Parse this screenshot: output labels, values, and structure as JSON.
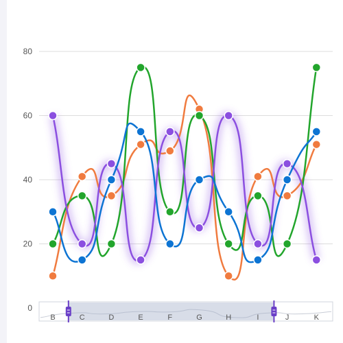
{
  "chart_data": {
    "type": "line",
    "smooth": true,
    "categories": [
      "B",
      "C",
      "D",
      "E",
      "F",
      "G",
      "H",
      "I",
      "J",
      "K"
    ],
    "ylim": [
      0,
      80
    ],
    "yticks": [
      0,
      20,
      40,
      60,
      80
    ],
    "grid": true,
    "series": [
      {
        "color": "#f07b3f",
        "values": [
          10,
          41,
          35,
          51,
          49,
          62,
          10,
          41,
          35,
          51
        ]
      },
      {
        "color": "#22a52c",
        "values": [
          20,
          35,
          20,
          75,
          30,
          60,
          20,
          35,
          20,
          75
        ]
      },
      {
        "color": "#8b4fe0",
        "values": [
          60,
          20,
          45,
          15,
          55,
          25,
          60,
          20,
          45,
          15
        ],
        "glow": true
      },
      {
        "color": "#0d74d3",
        "values": [
          30,
          15,
          40,
          55,
          20,
          40,
          30,
          15,
          40,
          55
        ]
      }
    ],
    "zoom": {
      "categories": [
        "B",
        "C",
        "D",
        "E",
        "F",
        "G",
        "H",
        "I",
        "J",
        "K"
      ],
      "range_start": 0.1,
      "range_end": 0.8,
      "handle_color": "#6a3fc7"
    }
  }
}
